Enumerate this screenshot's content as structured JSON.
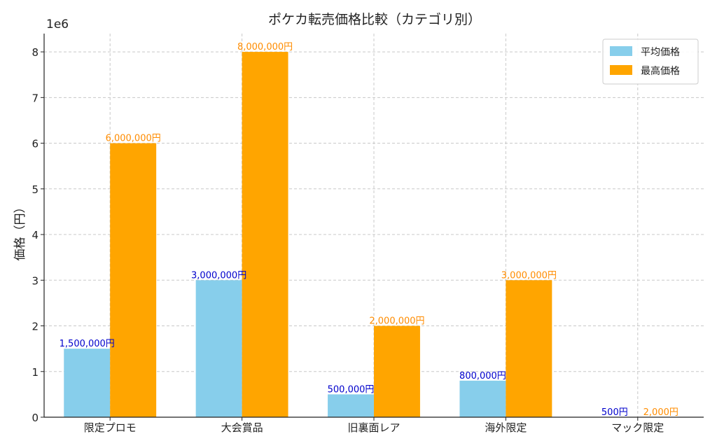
{
  "chart_data": {
    "type": "bar",
    "title": "ポケカ転売価格比較（カテゴリ別）",
    "xlabel": "",
    "ylabel": "価格（円）",
    "y_offset_text": "1e6",
    "ylim": [
      0,
      8400000
    ],
    "yticks": [
      0,
      1000000,
      2000000,
      3000000,
      4000000,
      5000000,
      6000000,
      7000000,
      8000000
    ],
    "ytick_labels": [
      "0",
      "1",
      "2",
      "3",
      "4",
      "5",
      "6",
      "7",
      "8"
    ],
    "grid": true,
    "legend_position": "top-right",
    "categories": [
      "限定プロモ",
      "大会賞品",
      "旧裏面レア",
      "海外限定",
      "マック限定"
    ],
    "series": [
      {
        "name": "平均価格",
        "color": "#87ceeb",
        "label_color": "#0000cc",
        "values": [
          1500000,
          3000000,
          500000,
          800000,
          500
        ],
        "labels": [
          "1,500,000円",
          "3,000,000円",
          "500,000円",
          "800,000円",
          "500円"
        ]
      },
      {
        "name": "最高価格",
        "color": "#ffa500",
        "label_color": "#ff8c00",
        "values": [
          6000000,
          8000000,
          2000000,
          3000000,
          2000
        ],
        "labels": [
          "6,000,000円",
          "8,000,000円",
          "2,000,000円",
          "3,000,000円",
          "2,000円"
        ]
      }
    ]
  }
}
